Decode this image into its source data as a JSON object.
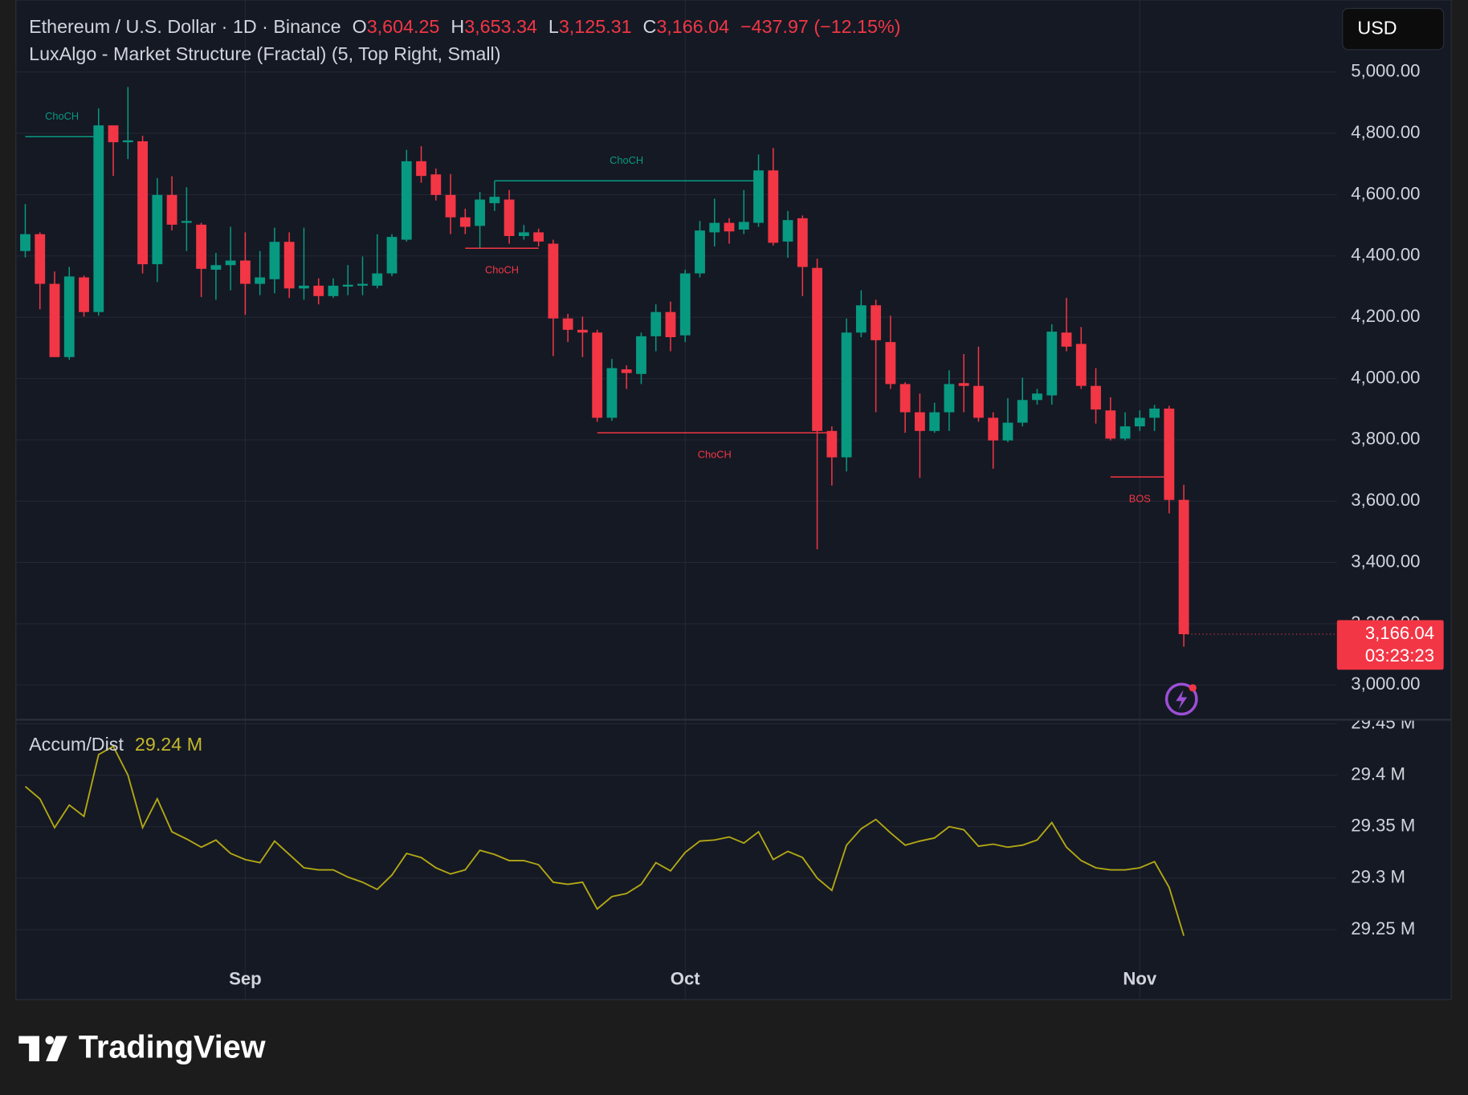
{
  "header": {
    "symbol": "Ethereum / U.S. Dollar · 1D · Binance",
    "ohlc": [
      {
        "label": "O",
        "value": "3,604.25"
      },
      {
        "label": "H",
        "value": "3,653.34"
      },
      {
        "label": "L",
        "value": "3,125.31"
      },
      {
        "label": "C",
        "value": "3,166.04"
      }
    ],
    "change": "−437.97 (−12.15%)",
    "indicator": "LuxAlgo - Market Structure (Fractal) (5, Top Right, Small)"
  },
  "currency": "USD",
  "price_tag": {
    "price": "3,166.04",
    "countdown": "03:23:23"
  },
  "brand": "TradingView",
  "chart_data": [
    {
      "type": "candlestick",
      "categories": [
        null,
        null,
        null,
        null,
        null,
        null,
        null,
        null,
        null,
        null,
        null,
        null,
        null,
        null,
        null,
        "Sep",
        null,
        null,
        null,
        null,
        null,
        null,
        null,
        null,
        null,
        null,
        null,
        null,
        null,
        null,
        null,
        null,
        null,
        null,
        null,
        null,
        null,
        null,
        null,
        null,
        null,
        null,
        null,
        null,
        null,
        "Oct",
        null,
        null,
        null,
        null,
        null,
        null,
        null,
        null,
        null,
        null,
        null,
        null,
        null,
        null,
        null,
        null,
        null,
        null,
        null,
        null,
        null,
        null,
        null,
        null,
        null,
        null,
        null,
        null,
        null,
        null,
        "Nov",
        null,
        null,
        null
      ],
      "open": [
        4416,
        4471,
        4309,
        4070,
        4330,
        4217,
        4826,
        4771,
        4774,
        4373,
        4599,
        4508,
        4502,
        4355,
        4370,
        4385,
        4309,
        4324,
        4446,
        4294,
        4303,
        4269,
        4300,
        4303,
        4303,
        4343,
        4453,
        4709,
        4666,
        4599,
        4526,
        4498,
        4572,
        4584,
        4465,
        4477,
        4440,
        4196,
        4159,
        4150,
        3872,
        4030,
        4015,
        4138,
        4217,
        4141,
        4343,
        4477,
        4508,
        4486,
        4508,
        4679,
        4447,
        4523,
        4361,
        3829,
        3743,
        4150,
        4239,
        4119,
        3982,
        3890,
        3829,
        3890,
        3985,
        3976,
        3872,
        3798,
        3856,
        3930,
        3945,
        4150,
        4113,
        3976,
        3896,
        3804,
        3844,
        3872,
        3902,
        3604.25
      ],
      "high": [
        4569,
        4477,
        4349,
        4364,
        4336,
        4881,
        4826,
        4951,
        4792,
        4654,
        4660,
        4624,
        4508,
        4410,
        4495,
        4477,
        4416,
        4492,
        4477,
        4492,
        4327,
        4327,
        4370,
        4398,
        4471,
        4471,
        4746,
        4758,
        4685,
        4667,
        4554,
        4609,
        4645,
        4615,
        4501,
        4489,
        4453,
        4211,
        4202,
        4159,
        4064,
        4043,
        4150,
        4242,
        4251,
        4355,
        4514,
        4587,
        4523,
        4615,
        4731,
        4752,
        4547,
        4532,
        4391,
        3844,
        4196,
        4288,
        4257,
        4205,
        3988,
        3951,
        3921,
        4027,
        4080,
        4104,
        3890,
        3936,
        4003,
        3966,
        4177,
        4263,
        4168,
        4034,
        3939,
        3890,
        3896,
        3914,
        3911,
        3653.34
      ],
      "low": [
        4395,
        4226,
        4070,
        4061,
        4202,
        4205,
        4661,
        4716,
        4343,
        4315,
        4483,
        4416,
        4266,
        4257,
        4288,
        4208,
        4272,
        4278,
        4263,
        4257,
        4242,
        4263,
        4272,
        4272,
        4294,
        4334,
        4447,
        4639,
        4581,
        4471,
        4471,
        4425,
        4547,
        4440,
        4453,
        4431,
        4073,
        4119,
        4070,
        3859,
        3862,
        3966,
        3982,
        4089,
        4089,
        4119,
        4330,
        4431,
        4440,
        4471,
        4495,
        4434,
        4394,
        4269,
        3443,
        3651,
        3697,
        4135,
        3890,
        3966,
        3823,
        3676,
        3823,
        3829,
        3890,
        3859,
        3706,
        3792,
        3844,
        3915,
        3915,
        4089,
        3966,
        3853,
        3798,
        3798,
        3829,
        3829,
        3560,
        3125.31
      ],
      "close": [
        4471,
        4309,
        4070,
        4333,
        4217,
        4826,
        4771,
        4777,
        4373,
        4599,
        4502,
        4514,
        4358,
        4370,
        4385,
        4309,
        4330,
        4446,
        4294,
        4303,
        4269,
        4303,
        4306,
        4309,
        4343,
        4462,
        4709,
        4661,
        4599,
        4526,
        4495,
        4584,
        4593,
        4465,
        4477,
        4447,
        4196,
        4159,
        4150,
        3872,
        4034,
        4018,
        4138,
        4217,
        4135,
        4343,
        4483,
        4508,
        4480,
        4511,
        4679,
        4443,
        4517,
        4364,
        3829,
        3743,
        4150,
        4239,
        4125,
        3982,
        3890,
        3829,
        3890,
        3982,
        3976,
        3872,
        3798,
        3856,
        3930,
        3951,
        4153,
        4104,
        3976,
        3899,
        3804,
        3844,
        3872,
        3902,
        3604,
        3166.04
      ],
      "up_color": "#089981",
      "down_color": "#f23645",
      "ylim": [
        2890,
        5235
      ],
      "yticks": [
        {
          "value": 3000,
          "label": "3,000.00"
        },
        {
          "value": 3200,
          "label": "3,200.00"
        },
        {
          "value": 3400,
          "label": "3,400.00"
        },
        {
          "value": 3600,
          "label": "3,600.00"
        },
        {
          "value": 3800,
          "label": "3,800.00"
        },
        {
          "value": 4000,
          "label": "4,000.00"
        },
        {
          "value": 4200,
          "label": "4,200.00"
        },
        {
          "value": 4400,
          "label": "4,400.00"
        },
        {
          "value": 4600,
          "label": "4,600.00"
        },
        {
          "value": 4800,
          "label": "4,800.00"
        },
        {
          "value": 5000,
          "label": "5,000.00"
        }
      ],
      "grid": true,
      "annotations": [
        {
          "label": "ChoCH",
          "color": "#089981",
          "price": 4789,
          "from": 0,
          "to": 5,
          "label_pos": "above"
        },
        {
          "label": "ChoCH",
          "color": "#f23645",
          "price": 4425,
          "from": 30,
          "to": 35,
          "label_pos": "below"
        },
        {
          "label": "ChoCH",
          "color": "#089981",
          "price": 4645,
          "from": 32,
          "to": 50,
          "label_pos": "above"
        },
        {
          "label": "ChoCH",
          "color": "#f23645",
          "price": 3823,
          "from": 39,
          "to": 55,
          "label_pos": "below"
        },
        {
          "label": "BOS",
          "color": "#f23645",
          "price": 3679,
          "from": 74,
          "to": 78,
          "label_pos": "below"
        }
      ]
    },
    {
      "type": "line",
      "series": [
        {
          "name": "Accum/Dist",
          "color": "#b3a814",
          "legend_value": "29.24 M",
          "values": [
            29.389,
            29.377,
            29.349,
            29.371,
            29.36,
            29.42,
            29.428,
            29.4,
            29.349,
            29.377,
            29.345,
            29.338,
            29.33,
            29.337,
            29.324,
            29.318,
            29.315,
            29.336,
            29.323,
            29.31,
            29.308,
            29.308,
            29.301,
            29.296,
            29.289,
            29.303,
            29.324,
            29.32,
            29.31,
            29.304,
            29.308,
            29.327,
            29.323,
            29.317,
            29.317,
            29.313,
            29.296,
            29.294,
            29.296,
            29.27,
            29.282,
            29.285,
            29.294,
            29.315,
            29.307,
            29.325,
            29.336,
            29.337,
            29.34,
            29.334,
            29.345,
            29.318,
            29.326,
            29.32,
            29.3,
            29.288,
            29.332,
            29.348,
            29.357,
            29.344,
            29.332,
            29.336,
            29.339,
            29.35,
            29.347,
            29.331,
            29.333,
            29.33,
            29.332,
            29.337,
            29.354,
            29.33,
            29.317,
            29.31,
            29.308,
            29.308,
            29.31,
            29.316,
            29.291,
            29.244
          ]
        }
      ],
      "ylim": [
        29.182,
        29.453
      ],
      "yticks": [
        {
          "value": 29.25,
          "label": "29.25 M"
        },
        {
          "value": 29.3,
          "label": "29.3 M"
        },
        {
          "value": 29.35,
          "label": "29.35 M"
        },
        {
          "value": 29.4,
          "label": "29.4 M"
        },
        {
          "value": 29.45,
          "label": "29.45 M"
        }
      ],
      "grid": true
    }
  ]
}
